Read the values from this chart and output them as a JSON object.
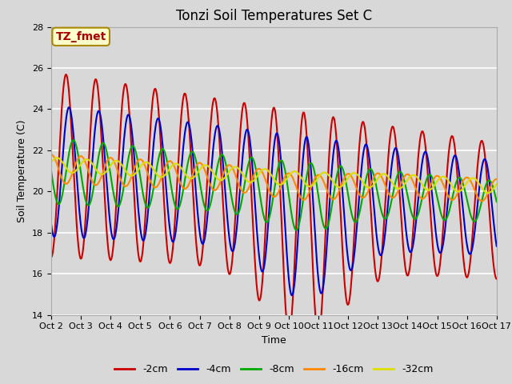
{
  "title": "Tonzi Soil Temperatures Set C",
  "xlabel": "Time",
  "ylabel": "Soil Temperature (C)",
  "ylim": [
    14,
    28
  ],
  "yticks": [
    14,
    16,
    18,
    20,
    22,
    24,
    26,
    28
  ],
  "x_labels": [
    "Oct 2",
    "Oct 3",
    "Oct 4",
    "Oct 5",
    "Oct 6",
    "Oct 7",
    "Oct 8",
    "Oct 9",
    "Oct 10",
    "Oct 11",
    "Oct 12",
    "Oct 13",
    "Oct 14",
    "Oct 15",
    "Oct 16",
    "Oct 17"
  ],
  "series": [
    {
      "label": "-2cm",
      "color": "#cc0000",
      "lw": 1.5
    },
    {
      "label": "-4cm",
      "color": "#0000cc",
      "lw": 1.5
    },
    {
      "label": "-8cm",
      "color": "#00aa00",
      "lw": 1.5
    },
    {
      "label": "-16cm",
      "color": "#ff8800",
      "lw": 1.5
    },
    {
      "label": "-32cm",
      "color": "#dddd00",
      "lw": 1.5
    }
  ],
  "annotation_text": "TZ_fmet",
  "annotation_bg": "#ffffcc",
  "annotation_border": "#aa8800",
  "annotation_text_color": "#aa0000",
  "fig_bg": "#d8d8d8",
  "plot_bg": "#d8d8d8",
  "title_fontsize": 12,
  "axis_label_fontsize": 9,
  "tick_fontsize": 8,
  "legend_fontsize": 9
}
